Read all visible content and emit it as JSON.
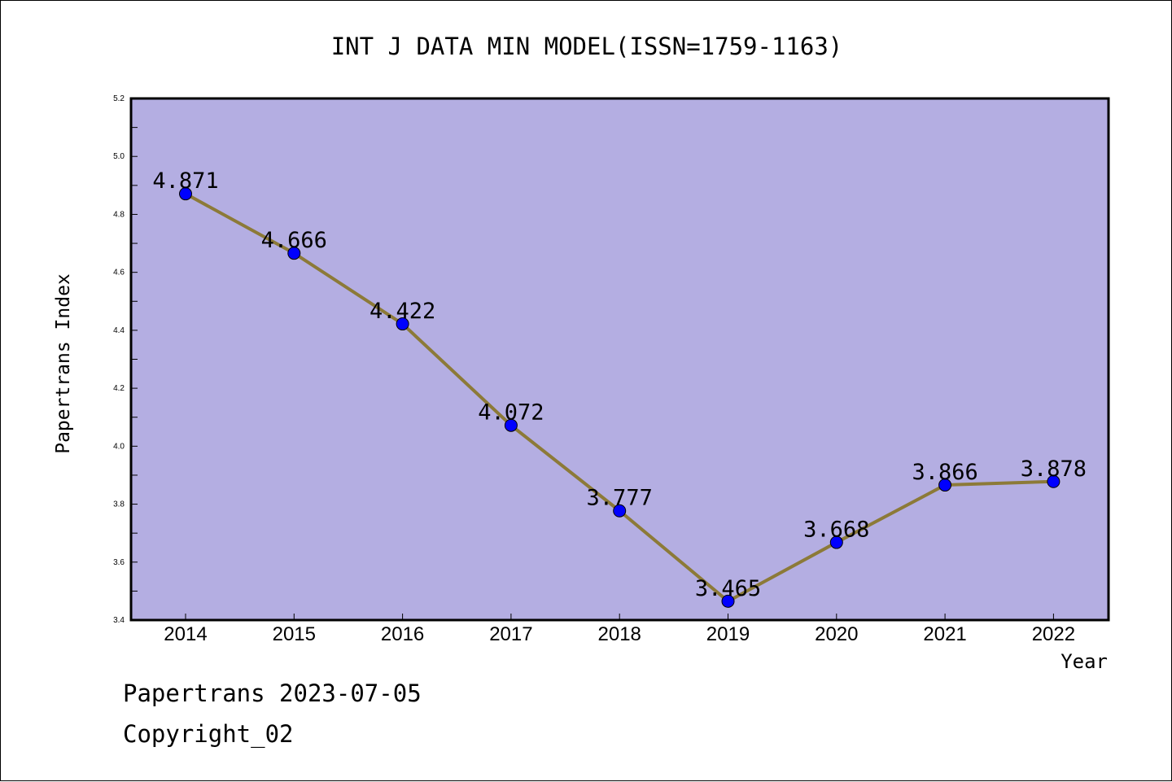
{
  "chart_data": {
    "type": "line",
    "title": "INT J DATA MIN MODEL(ISSN=1759-1163)",
    "xlabel": "Year",
    "ylabel": "Papertrans Index",
    "categories": [
      "2014",
      "2015",
      "2016",
      "2017",
      "2018",
      "2019",
      "2020",
      "2021",
      "2022"
    ],
    "series": [
      {
        "values": [
          4.871,
          4.666,
          4.422,
          4.072,
          3.777,
          3.465,
          3.668,
          3.866,
          3.878
        ],
        "data_labels": [
          "4.871",
          "4.666",
          "4.422",
          "4.072",
          "3.777",
          "3.465",
          "3.668",
          "3.866",
          "3.878"
        ]
      }
    ],
    "ylim": [
      3.4,
      5.2
    ],
    "yticks": [
      "3.4",
      "3.6",
      "3.8",
      "4.0",
      "4.2",
      "4.4",
      "4.6",
      "4.8",
      "5.0",
      "5.2"
    ],
    "grid": false,
    "legend": "none",
    "colors": {
      "plot_background": "#b4aee2",
      "line": "#8c7a38",
      "marker": "#0000ff",
      "axes": "#000000"
    }
  },
  "footer": {
    "line1": "Papertrans 2023-07-05",
    "line2": "Copyright_02"
  }
}
